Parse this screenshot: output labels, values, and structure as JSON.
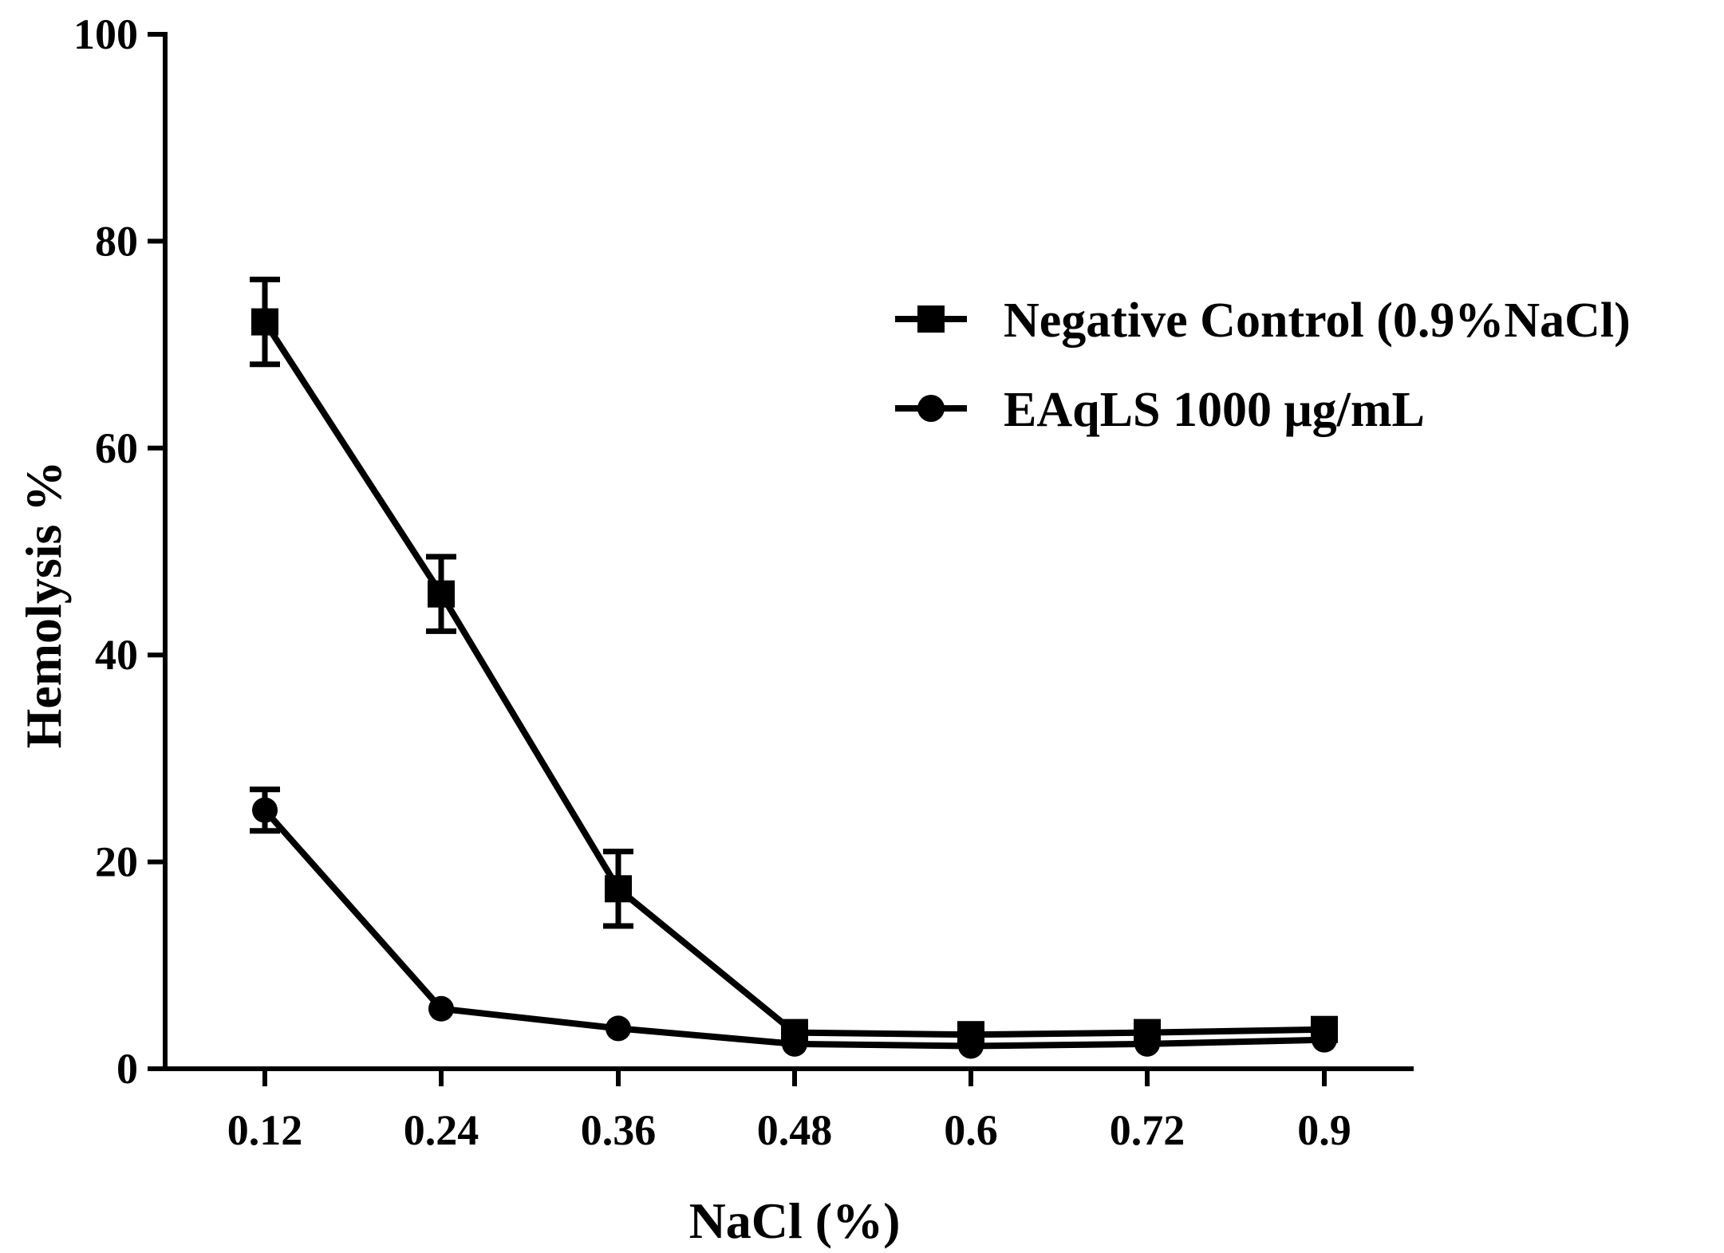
{
  "chart_data": {
    "type": "line",
    "title": "",
    "xlabel": "NaCl (%)",
    "ylabel": "Hemolysis %",
    "categories": [
      "0.12",
      "0.24",
      "0.36",
      "0.48",
      "0.6",
      "0.72",
      "0.9"
    ],
    "ylim": [
      0,
      100
    ],
    "yticks": [
      0,
      20,
      40,
      60,
      80,
      100
    ],
    "grid": false,
    "legend_position": "top-right",
    "series": [
      {
        "name": "Negative Control (0.9%NaCl)",
        "marker": "square",
        "values": [
          72.2,
          45.9,
          17.4,
          3.5,
          3.3,
          3.5,
          3.8
        ],
        "errors": [
          4.1,
          3.6,
          3.6,
          0.0,
          0.0,
          0.0,
          0.0
        ]
      },
      {
        "name": "EAqLS 1000 μg/mL",
        "marker": "circle",
        "values": [
          25.0,
          5.8,
          3.9,
          2.4,
          2.2,
          2.4,
          2.8
        ],
        "errors": [
          2.0,
          0.0,
          0.0,
          0.0,
          0.0,
          0.0,
          0.0
        ]
      }
    ]
  }
}
